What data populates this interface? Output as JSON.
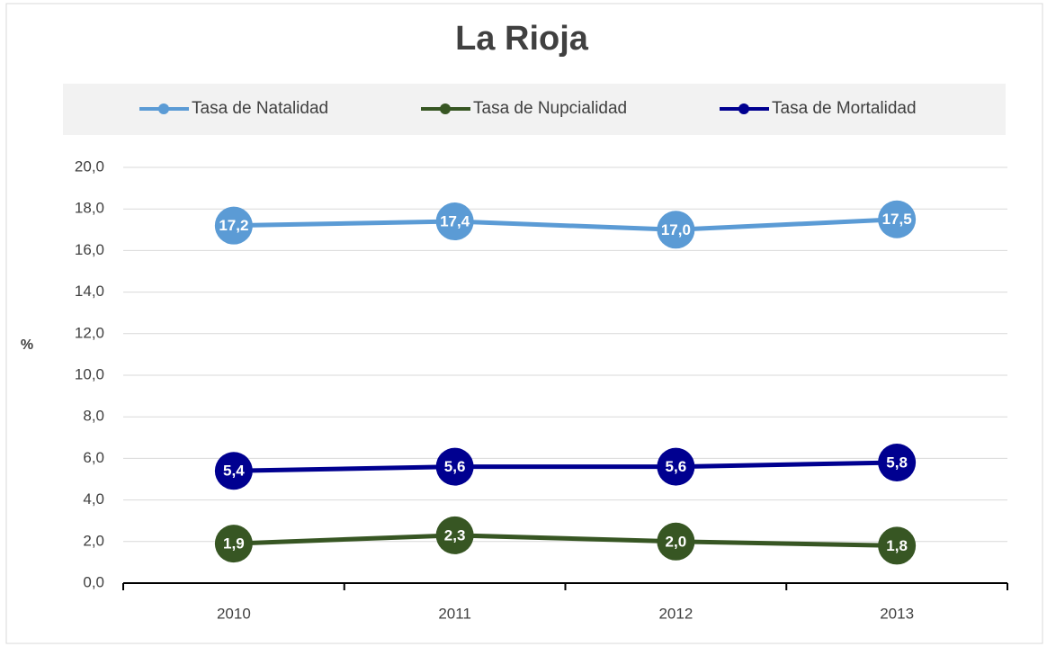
{
  "chart_data": {
    "type": "line",
    "title": "La Rioja",
    "y_label": "%",
    "categories": [
      "2010",
      "2011",
      "2012",
      "2013"
    ],
    "series": [
      {
        "name": "Tasa de Natalidad",
        "color": "#5b9bd5",
        "values": [
          17.2,
          17.4,
          17.0,
          17.5
        ],
        "value_labels": [
          "17,2",
          "17,4",
          "17,0",
          "17,5"
        ]
      },
      {
        "name": "Tasa de Nupcialidad",
        "color": "#375623",
        "values": [
          1.9,
          2.3,
          2.0,
          1.8
        ],
        "value_labels": [
          "1,9",
          "2,3",
          "2,0",
          "1,8"
        ]
      },
      {
        "name": "Tasa de Mortalidad",
        "color": "#000090",
        "values": [
          5.4,
          5.6,
          5.6,
          5.8
        ],
        "value_labels": [
          "5,4",
          "5,6",
          "5,6",
          "5,8"
        ]
      }
    ],
    "ylim": [
      0,
      20
    ],
    "yticks": [
      {
        "value": 0,
        "label": "0,0"
      },
      {
        "value": 2,
        "label": "2,0"
      },
      {
        "value": 4,
        "label": "4,0"
      },
      {
        "value": 6,
        "label": "6,0"
      },
      {
        "value": 8,
        "label": "8,0"
      },
      {
        "value": 10,
        "label": "10,0"
      },
      {
        "value": 12,
        "label": "12,0"
      },
      {
        "value": 14,
        "label": "14,0"
      },
      {
        "value": 16,
        "label": "16,0"
      },
      {
        "value": 18,
        "label": "18,0"
      },
      {
        "value": 20,
        "label": "20,0"
      }
    ],
    "grid": true,
    "legend": "top"
  }
}
